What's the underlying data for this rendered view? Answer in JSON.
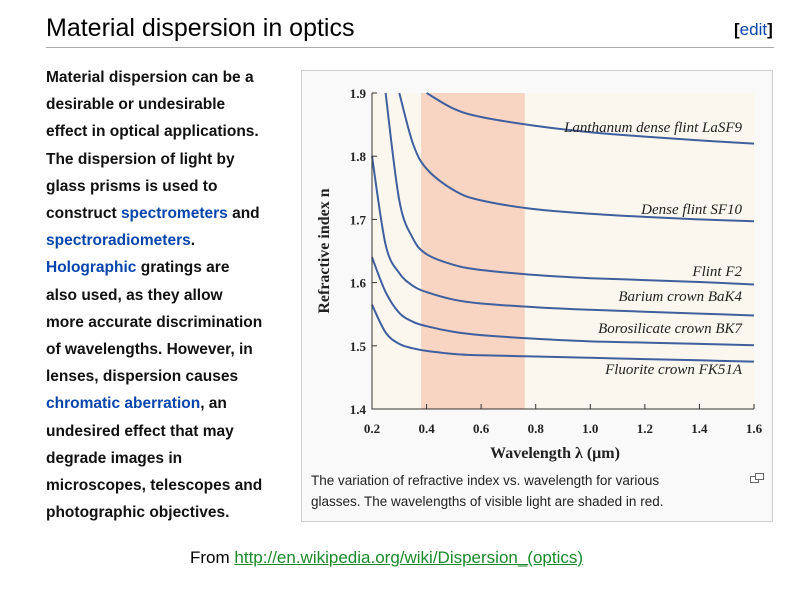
{
  "section": {
    "title": "Material dispersion in optics",
    "edit_open": "[",
    "edit_label": "edit",
    "edit_close": "]"
  },
  "paragraph": {
    "l1": "Material dispersion can be a",
    "l2": "desirable or undesirable",
    "l3": "effect in optical applications.",
    "l4": "The dispersion of light by",
    "l5": "glass prisms is used to",
    "l6_pre": "construct ",
    "link_spectrometers": "spectrometers",
    "l6_post": " and",
    "link_spectroradiometers": "spectroradiometers",
    "l7_post": ".",
    "link_holographic": "Holographic",
    "l8_post": " gratings are",
    "l9": "also used, as they allow",
    "l10": "more accurate discrimination",
    "l11": "of wavelengths. However, in",
    "l12": "lenses, dispersion causes",
    "link_chromatic": "chromatic aberration",
    "l13_post": ", an",
    "l14": "undesired effect that may",
    "l15": "degrade images in",
    "l16": "microscopes, telescopes and",
    "l17": "photographic objectives."
  },
  "figure": {
    "caption_line1": "The variation of refractive index vs. wavelength for various",
    "caption_line2": "glasses. The wavelengths of visible light are shaded in red.",
    "magnify_icon": "magnify-clip-icon"
  },
  "footer": {
    "prefix": "From ",
    "link": "http://en.wikipedia.org/wiki/Dispersion_(optics)"
  },
  "colors": {
    "link": "#0645ad",
    "curve": "#3f5f9e",
    "visible_band": "#f8d5c2",
    "footer_link": "#1a8a2a"
  },
  "chart_data": {
    "type": "line",
    "xlabel": "Wavelength λ (μm)",
    "ylabel": "Refractive index n",
    "xlim": [
      0.2,
      1.6
    ],
    "ylim": [
      1.4,
      1.9
    ],
    "xticks": [
      "0.2",
      "0.4",
      "0.6",
      "0.8",
      "1.0",
      "1.2",
      "1.4",
      "1.6"
    ],
    "yticks": [
      "1.4",
      "1.5",
      "1.6",
      "1.7",
      "1.8",
      "1.9"
    ],
    "shaded_band": [
      0.38,
      0.76
    ],
    "grid": false,
    "series": [
      {
        "name": "Lanthanum dense flint LaSF9",
        "x": [
          0.4,
          0.5,
          0.6,
          0.8,
          1.0,
          1.2,
          1.4,
          1.6
        ],
        "y": [
          1.9,
          1.875,
          1.862,
          1.848,
          1.838,
          1.831,
          1.825,
          1.82
        ]
      },
      {
        "name": "Dense flint SF10",
        "x": [
          0.3,
          0.35,
          0.4,
          0.5,
          0.6,
          0.8,
          1.0,
          1.2,
          1.4,
          1.6
        ],
        "y": [
          1.9,
          1.82,
          1.78,
          1.746,
          1.73,
          1.716,
          1.709,
          1.704,
          1.7,
          1.697
        ]
      },
      {
        "name": "Flint F2",
        "x": [
          0.25,
          0.3,
          0.35,
          0.4,
          0.5,
          0.6,
          0.8,
          1.0,
          1.2,
          1.4,
          1.6
        ],
        "y": [
          1.9,
          1.73,
          1.67,
          1.645,
          1.628,
          1.62,
          1.612,
          1.607,
          1.604,
          1.601,
          1.597
        ]
      },
      {
        "name": "Barium crown BaK4",
        "x": [
          0.2,
          0.25,
          0.3,
          0.35,
          0.4,
          0.5,
          0.6,
          0.8,
          1.0,
          1.2,
          1.4,
          1.6
        ],
        "y": [
          1.8,
          1.66,
          1.615,
          1.595,
          1.585,
          1.573,
          1.567,
          1.561,
          1.557,
          1.554,
          1.551,
          1.548
        ]
      },
      {
        "name": "Borosilicate crown BK7",
        "x": [
          0.2,
          0.25,
          0.3,
          0.35,
          0.4,
          0.5,
          0.6,
          0.8,
          1.0,
          1.2,
          1.4,
          1.6
        ],
        "y": [
          1.64,
          1.585,
          1.552,
          1.538,
          1.531,
          1.522,
          1.517,
          1.511,
          1.507,
          1.505,
          1.503,
          1.501
        ]
      },
      {
        "name": "Fluorite crown FK51A",
        "x": [
          0.2,
          0.25,
          0.3,
          0.35,
          0.4,
          0.5,
          0.6,
          0.8,
          1.0,
          1.2,
          1.4,
          1.6
        ],
        "y": [
          1.565,
          1.521,
          1.503,
          1.496,
          1.492,
          1.487,
          1.485,
          1.483,
          1.481,
          1.479,
          1.477,
          1.475
        ]
      }
    ]
  }
}
